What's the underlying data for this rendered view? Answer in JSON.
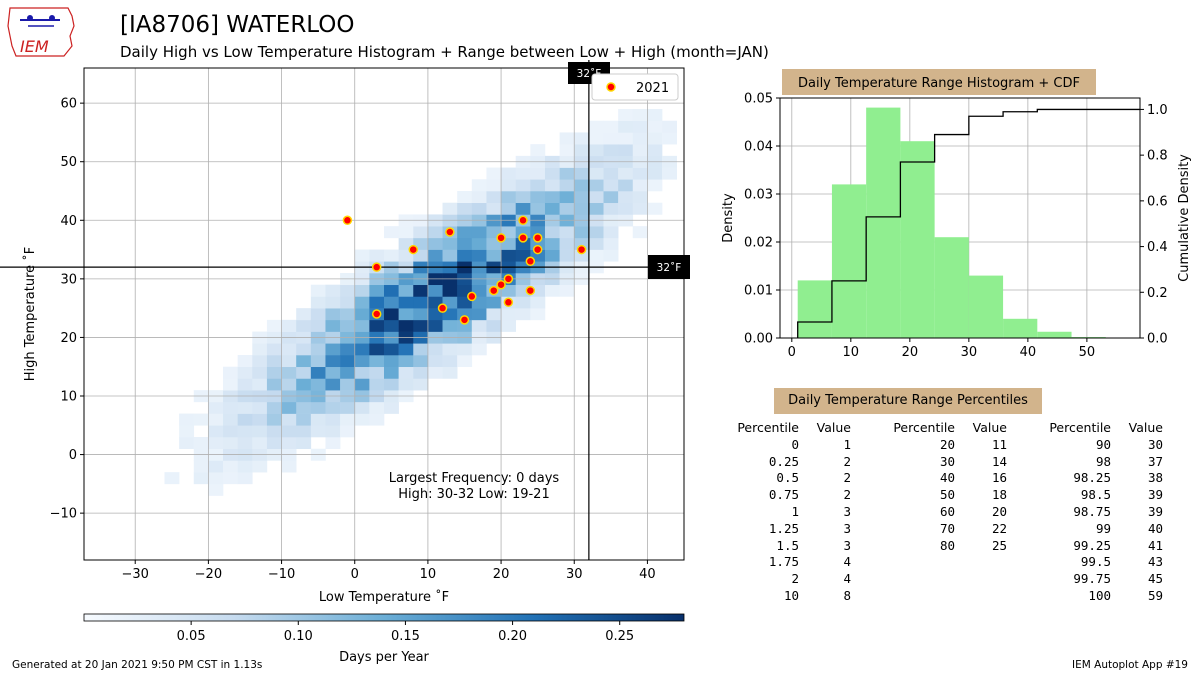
{
  "header": {
    "logo_text": "IEM",
    "title": "[IA8706] WATERLOO",
    "subtitle": "Daily High vs Low Temperature Histogram + Range between Low + High (month=JAN)"
  },
  "footer": {
    "generated": "Generated at 20 Jan 2021 9:50 PM CST in 1.13s",
    "app": "IEM Autoplot App #19"
  },
  "colors": {
    "heat": "#08306b",
    "obs_fill": "#ff0000",
    "obs_edge": "#ffd700",
    "hist": "#90ee90",
    "label_bg": "#d2b48c"
  },
  "chart_data": [
    {
      "type": "heatmap",
      "xlabel": "Low Temperature ˚F",
      "ylabel": "High Temperature ˚F",
      "xlim": [
        -37,
        45
      ],
      "ylim": [
        -18,
        66
      ],
      "xticks": [
        -30,
        -20,
        -10,
        0,
        10,
        20,
        30,
        40
      ],
      "yticks": [
        -10,
        0,
        10,
        20,
        30,
        40,
        50,
        60
      ],
      "grid": true,
      "freezing_lines": {
        "value": 32,
        "label": "32˚F"
      },
      "legend": {
        "placement": "top-right",
        "label": "2021"
      },
      "annotation": {
        "line1": "Largest Frequency: 0 days",
        "line2": "High: 30-32 Low: 19-21"
      },
      "observations_2021": [
        [
          -1,
          40
        ],
        [
          3,
          32
        ],
        [
          3,
          24
        ],
        [
          8,
          35
        ],
        [
          12,
          25
        ],
        [
          13,
          38
        ],
        [
          15,
          23
        ],
        [
          16,
          27
        ],
        [
          19,
          28
        ],
        [
          20,
          37
        ],
        [
          20,
          29
        ],
        [
          21,
          30
        ],
        [
          21,
          26
        ],
        [
          23,
          40
        ],
        [
          23,
          37
        ],
        [
          24,
          33
        ],
        [
          24,
          28
        ],
        [
          25,
          37
        ],
        [
          25,
          35
        ],
        [
          31,
          35
        ]
      ],
      "colorbar": {
        "label": "Days per Year",
        "range": [
          0,
          0.28
        ],
        "ticks": [
          0.05,
          0.1,
          0.15,
          0.2,
          0.25
        ],
        "tick_labels": [
          "0.05",
          "0.10",
          "0.15",
          "0.20",
          "0.25"
        ]
      }
    },
    {
      "type": "bar",
      "title": "Daily Temperature Range Histogram + CDF",
      "xlabel": "",
      "ylabel": "Density",
      "y2label": "Cumulative Density",
      "xlim": [
        -2,
        59
      ],
      "ylim": [
        0,
        0.05
      ],
      "y2lim": [
        0,
        1.05
      ],
      "xticks": [
        0,
        10,
        20,
        30,
        40,
        50
      ],
      "yticks": [
        0.0,
        0.01,
        0.02,
        0.03,
        0.04,
        0.05
      ],
      "ytick_labels": [
        "0.00",
        "0.01",
        "0.02",
        "0.03",
        "0.04",
        "0.05"
      ],
      "y2ticks": [
        0.0,
        0.2,
        0.4,
        0.6,
        0.8,
        1.0
      ],
      "y2tick_labels": [
        "0.0",
        "0.2",
        "0.4",
        "0.6",
        "0.8",
        "1.0"
      ],
      "bin_edges": [
        1,
        6.8,
        12.6,
        18.4,
        24.2,
        30,
        35.8,
        41.6,
        47.4,
        53.2,
        59
      ],
      "density": [
        0.012,
        0.032,
        0.048,
        0.041,
        0.021,
        0.013,
        0.004,
        0.0013,
        0.0002,
        0.0001
      ],
      "cdf": [
        0.07,
        0.25,
        0.53,
        0.77,
        0.89,
        0.97,
        0.99,
        1.0,
        1.0,
        1.0
      ],
      "grid": true
    },
    {
      "type": "table",
      "title": "Daily Temperature Range Percentiles",
      "headers": [
        "Percentile",
        "Value"
      ],
      "columns": [
        [
          [
            "0",
            "1"
          ],
          [
            "0.25",
            "2"
          ],
          [
            "0.5",
            "2"
          ],
          [
            "0.75",
            "2"
          ],
          [
            "1",
            "3"
          ],
          [
            "1.25",
            "3"
          ],
          [
            "1.5",
            "3"
          ],
          [
            "1.75",
            "4"
          ],
          [
            "2",
            "4"
          ],
          [
            "10",
            "8"
          ]
        ],
        [
          [
            "20",
            "11"
          ],
          [
            "30",
            "14"
          ],
          [
            "40",
            "16"
          ],
          [
            "50",
            "18"
          ],
          [
            "60",
            "20"
          ],
          [
            "70",
            "22"
          ],
          [
            "80",
            "25"
          ]
        ],
        [
          [
            "90",
            "30"
          ],
          [
            "98",
            "37"
          ],
          [
            "98.25",
            "38"
          ],
          [
            "98.5",
            "39"
          ],
          [
            "98.75",
            "39"
          ],
          [
            "99",
            "40"
          ],
          [
            "99.25",
            "41"
          ],
          [
            "99.5",
            "43"
          ],
          [
            "99.75",
            "45"
          ],
          [
            "100",
            "59"
          ]
        ]
      ]
    }
  ]
}
